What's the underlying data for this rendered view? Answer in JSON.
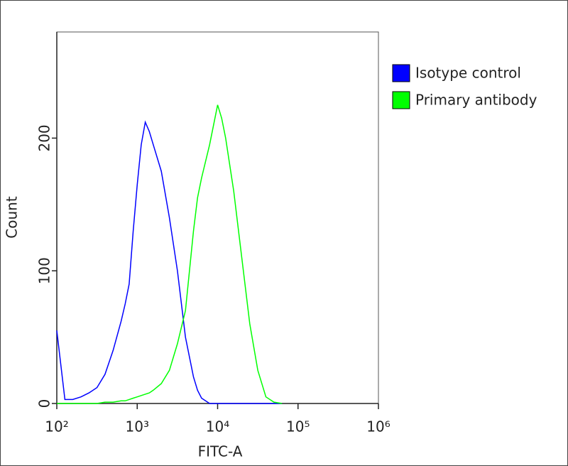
{
  "chart_data": {
    "type": "line",
    "x_label": "FITC-A",
    "y_label": "Count",
    "log_x": true,
    "xlim": [
      100,
      1000000
    ],
    "xticks": [
      {
        "value": 100,
        "label": "10²"
      },
      {
        "value": 1000,
        "label": "10³"
      },
      {
        "value": 10000,
        "label": "10⁴"
      },
      {
        "value": 100000,
        "label": "10⁵"
      },
      {
        "value": 1000000,
        "label": "10⁶"
      }
    ],
    "ylim": [
      0,
      280
    ],
    "yticks": [
      0,
      100,
      200
    ],
    "legend": "right",
    "x": [
      100,
      126,
      158,
      200,
      251,
      316,
      398,
      501,
      631,
      708,
      794,
      891,
      1000,
      1122,
      1259,
      1413,
      1585,
      1995,
      2512,
      3162,
      3981,
      5012,
      5623,
      6310,
      7943,
      10000,
      11220,
      12589,
      15849,
      19953,
      25119,
      31623,
      39811,
      50119,
      63096
    ],
    "series": [
      {
        "name": "Isotype control",
        "color": "#0000ff",
        "values": [
          55,
          3,
          3,
          5,
          8,
          12,
          22,
          40,
          62,
          75,
          90,
          130,
          165,
          195,
          212,
          205,
          195,
          175,
          140,
          100,
          50,
          20,
          10,
          4,
          0,
          0,
          0,
          0,
          0,
          0,
          0,
          0,
          0,
          0,
          0
        ]
      },
      {
        "name": "Primary antibody",
        "color": "#00ff00",
        "values": [
          0,
          0,
          0,
          0,
          0,
          0,
          1,
          1,
          2,
          2,
          3,
          4,
          5,
          6,
          7,
          8,
          10,
          15,
          25,
          45,
          70,
          130,
          155,
          170,
          195,
          225,
          215,
          200,
          160,
          110,
          60,
          25,
          5,
          1,
          0
        ]
      }
    ]
  }
}
